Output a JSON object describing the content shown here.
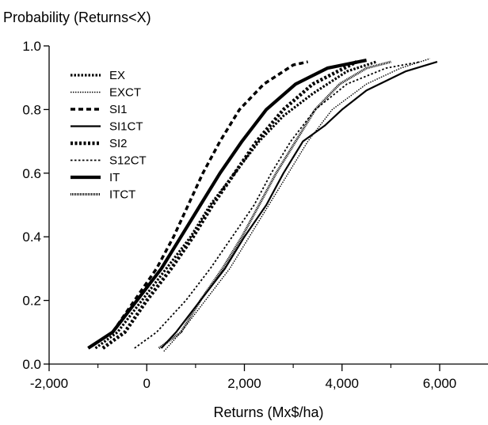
{
  "chart_data": {
    "type": "line",
    "title": "",
    "ylabel": "Probability (Returns<X)",
    "xlabel": "Returns (Mx$/ha)",
    "xlim": [
      -2000,
      7000
    ],
    "ylim": [
      0,
      1
    ],
    "x_ticks": [
      -2000,
      0,
      2000,
      4000,
      6000
    ],
    "x_tick_labels": [
      "-2,000",
      "0",
      "2,000",
      "4,000",
      "6,000"
    ],
    "y_ticks": [
      0,
      0.2,
      0.4,
      0.6,
      0.8,
      1.0
    ],
    "y_tick_labels": [
      "0.0",
      "0.2",
      "0.4",
      "0.6",
      "0.8",
      "1.0"
    ],
    "grid": false,
    "legend_position": "top-left",
    "series": [
      {
        "name": "EX",
        "style": "dotted-medium",
        "points": [
          [
            -1050,
            0.05
          ],
          [
            -600,
            0.1
          ],
          [
            -100,
            0.2
          ],
          [
            400,
            0.3
          ],
          [
            900,
            0.4
          ],
          [
            1300,
            0.5
          ],
          [
            1800,
            0.6
          ],
          [
            2300,
            0.7
          ],
          [
            2800,
            0.78
          ],
          [
            3400,
            0.85
          ],
          [
            4100,
            0.92
          ],
          [
            4700,
            0.95
          ]
        ]
      },
      {
        "name": "EXCT",
        "style": "dotted-thin",
        "points": [
          [
            350,
            0.04
          ],
          [
            700,
            0.1
          ],
          [
            1200,
            0.2
          ],
          [
            1700,
            0.3
          ],
          [
            2100,
            0.4
          ],
          [
            2500,
            0.5
          ],
          [
            2900,
            0.6
          ],
          [
            3300,
            0.7
          ],
          [
            3800,
            0.8
          ],
          [
            4500,
            0.88
          ],
          [
            5200,
            0.93
          ],
          [
            5800,
            0.96
          ]
        ]
      },
      {
        "name": "SI1",
        "style": "dashed",
        "points": [
          [
            -1100,
            0.06
          ],
          [
            -700,
            0.1
          ],
          [
            -250,
            0.2
          ],
          [
            200,
            0.3
          ],
          [
            550,
            0.4
          ],
          [
            850,
            0.5
          ],
          [
            1150,
            0.6
          ],
          [
            1500,
            0.7
          ],
          [
            1900,
            0.8
          ],
          [
            2400,
            0.88
          ],
          [
            3000,
            0.94
          ],
          [
            3300,
            0.95
          ]
        ]
      },
      {
        "name": "SI1CT",
        "style": "solid",
        "points": [
          [
            300,
            0.05
          ],
          [
            600,
            0.1
          ],
          [
            1100,
            0.2
          ],
          [
            1600,
            0.3
          ],
          [
            2000,
            0.4
          ],
          [
            2450,
            0.5
          ],
          [
            2800,
            0.6
          ],
          [
            3200,
            0.7
          ],
          [
            3650,
            0.75
          ],
          [
            4000,
            0.8
          ],
          [
            4500,
            0.86
          ],
          [
            5300,
            0.92
          ],
          [
            5950,
            0.95
          ]
        ]
      },
      {
        "name": "SI2",
        "style": "dotted-heavy",
        "points": [
          [
            -900,
            0.05
          ],
          [
            -450,
            0.1
          ],
          [
            0,
            0.2
          ],
          [
            500,
            0.3
          ],
          [
            950,
            0.4
          ],
          [
            1350,
            0.5
          ],
          [
            1800,
            0.6
          ],
          [
            2250,
            0.7
          ],
          [
            2800,
            0.8
          ],
          [
            3400,
            0.88
          ],
          [
            4300,
            0.95
          ]
        ]
      },
      {
        "name": "S12CT",
        "style": "dotted-small",
        "points": [
          [
            -250,
            0.05
          ],
          [
            200,
            0.1
          ],
          [
            800,
            0.2
          ],
          [
            1300,
            0.3
          ],
          [
            1750,
            0.4
          ],
          [
            2200,
            0.5
          ],
          [
            2550,
            0.6
          ],
          [
            2950,
            0.7
          ],
          [
            3450,
            0.8
          ],
          [
            4100,
            0.88
          ],
          [
            4900,
            0.93
          ],
          [
            5600,
            0.95
          ]
        ]
      },
      {
        "name": "IT",
        "style": "thick-solid",
        "points": [
          [
            -1200,
            0.05
          ],
          [
            -700,
            0.1
          ],
          [
            -200,
            0.2
          ],
          [
            300,
            0.3
          ],
          [
            700,
            0.4
          ],
          [
            1100,
            0.5
          ],
          [
            1500,
            0.6
          ],
          [
            1950,
            0.7
          ],
          [
            2450,
            0.8
          ],
          [
            3050,
            0.88
          ],
          [
            3700,
            0.93
          ],
          [
            4500,
            0.955
          ]
        ]
      },
      {
        "name": "ITCT",
        "style": "dense-dotted",
        "points": [
          [
            250,
            0.05
          ],
          [
            700,
            0.1
          ],
          [
            1100,
            0.2
          ],
          [
            1550,
            0.3
          ],
          [
            1950,
            0.4
          ],
          [
            2300,
            0.5
          ],
          [
            2650,
            0.6
          ],
          [
            3050,
            0.7
          ],
          [
            3450,
            0.8
          ],
          [
            3950,
            0.88
          ],
          [
            4500,
            0.93
          ],
          [
            5000,
            0.95
          ]
        ]
      }
    ]
  }
}
